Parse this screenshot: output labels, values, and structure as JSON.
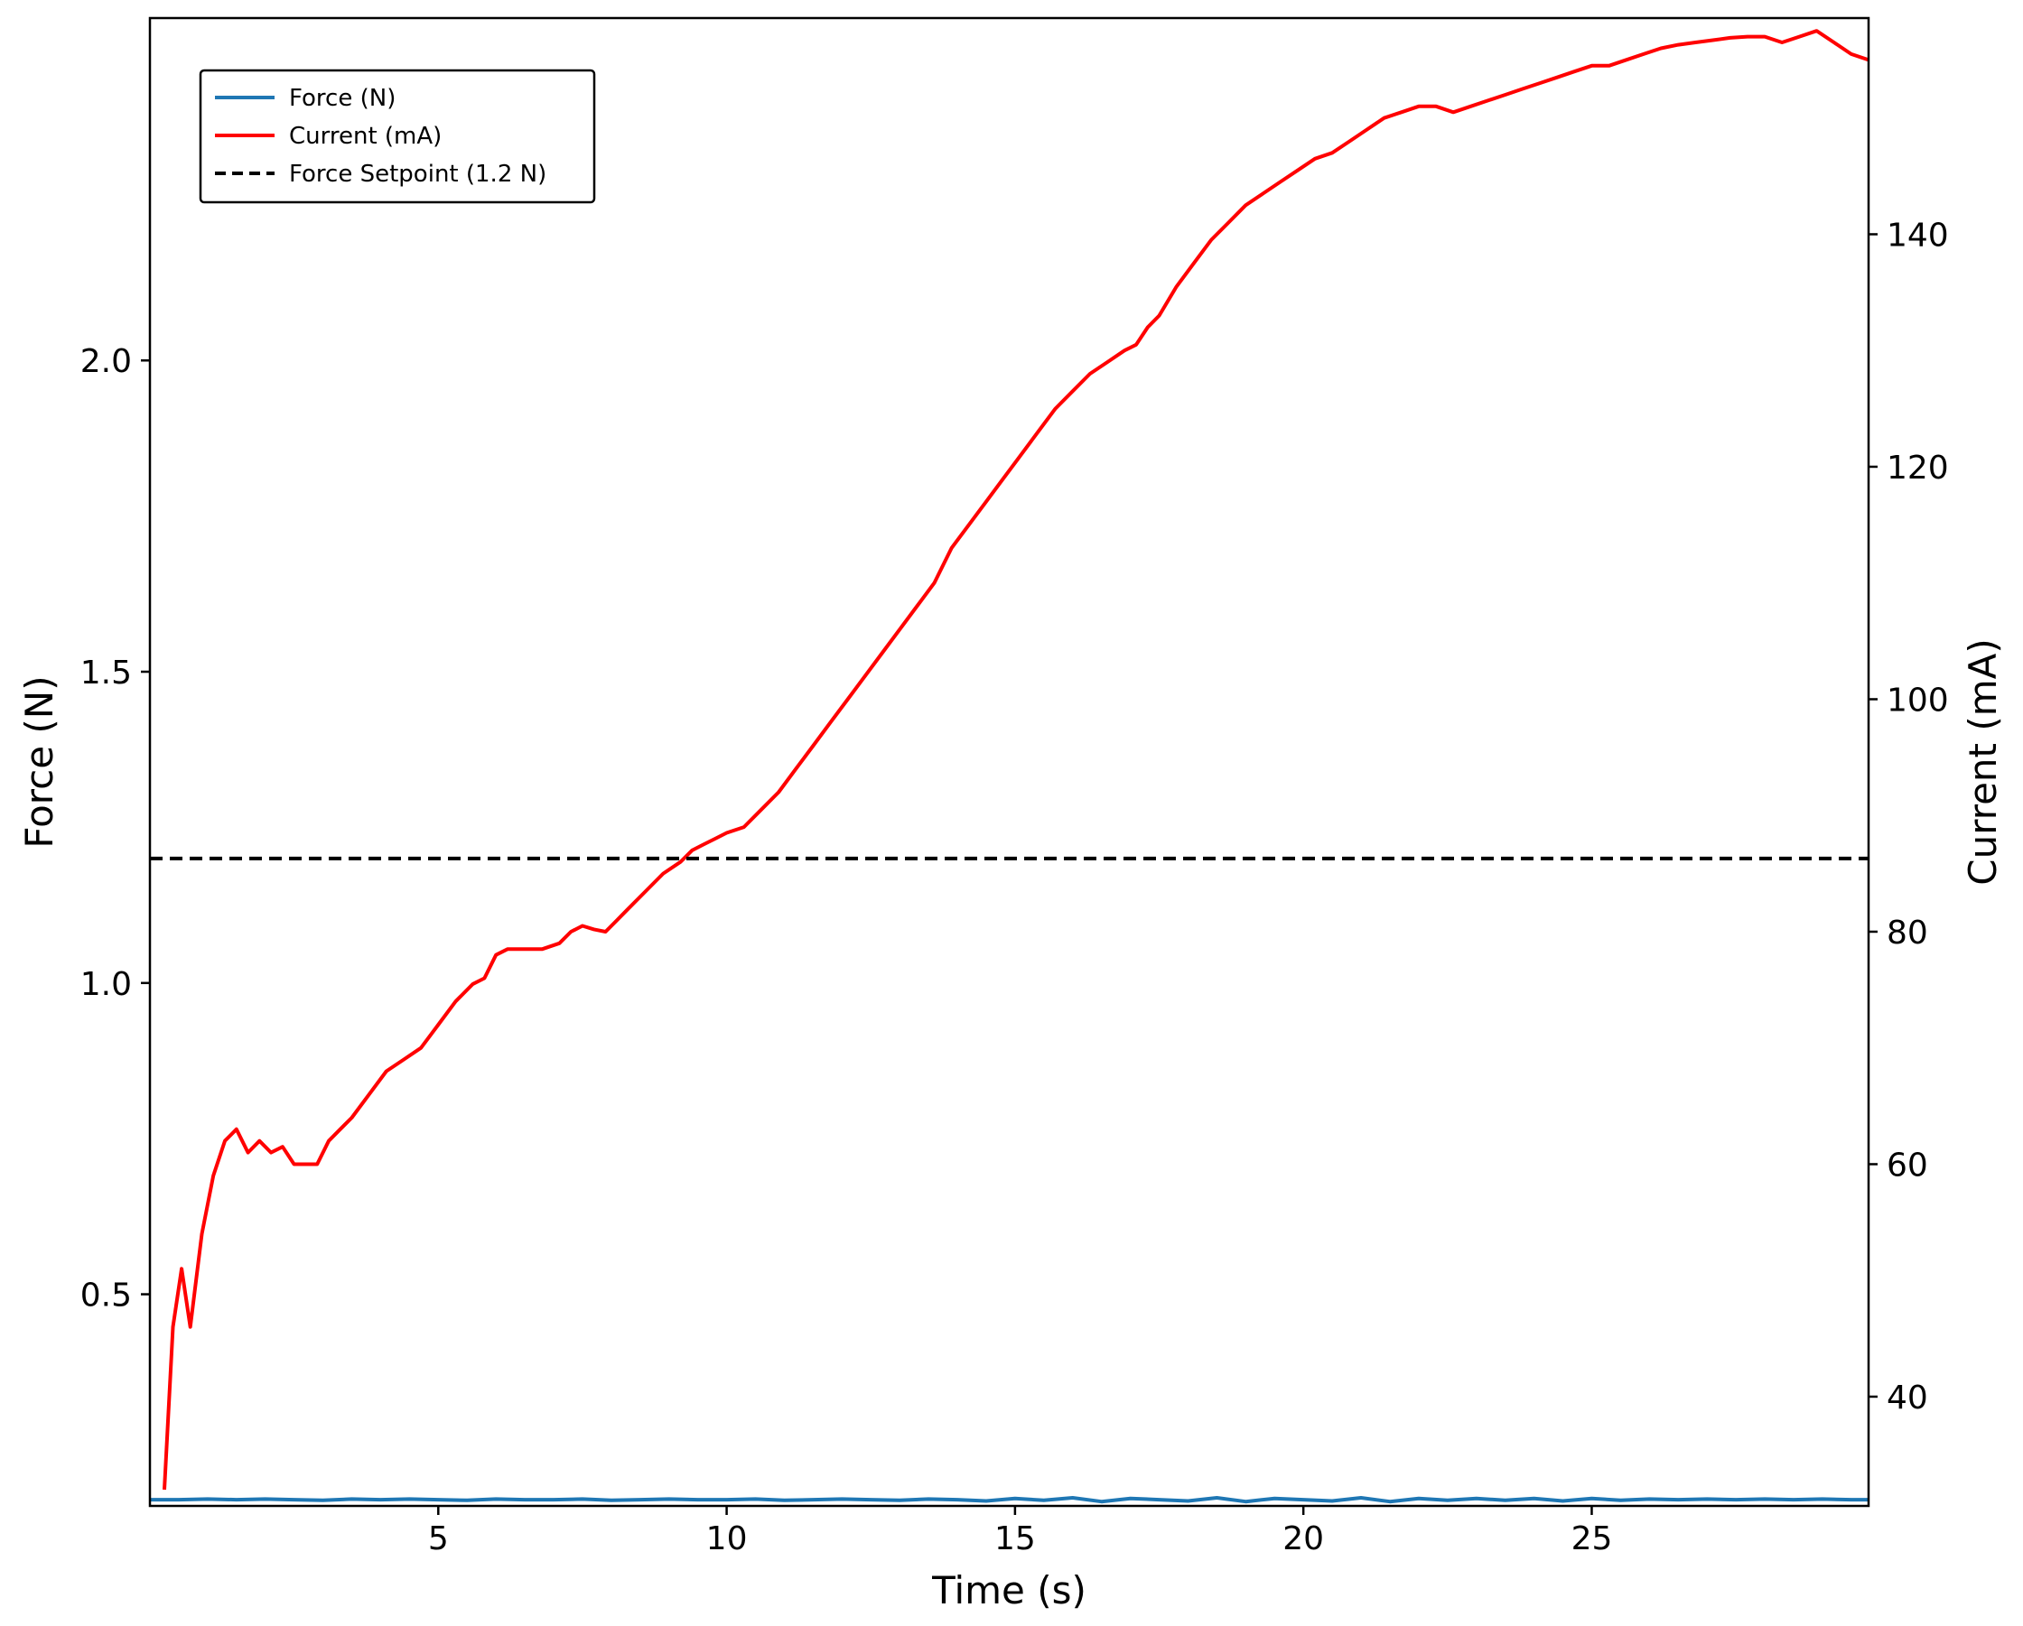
{
  "chart_data": {
    "type": "line",
    "xlabel": "Time (s)",
    "ylabel_left": "Force (N)",
    "ylabel_right": "Current (mA)",
    "xlim": [
      0,
      29.8
    ],
    "ylim_left": [
      0.16,
      2.55
    ],
    "ylim_right": [
      30.6,
      158.6
    ],
    "xticks": [
      5,
      10,
      15,
      20,
      25
    ],
    "yticks_left": [
      0.5,
      1.0,
      1.5,
      2.0
    ],
    "yticks_right": [
      40,
      60,
      80,
      100,
      120,
      140
    ],
    "xtick_labels": [
      "5",
      "10",
      "15",
      "20",
      "25"
    ],
    "ytick_left_labels": [
      "0.5",
      "1.0",
      "1.5",
      "2.0"
    ],
    "ytick_right_labels": [
      "40",
      "60",
      "80",
      "100",
      "120",
      "140"
    ],
    "grid": false,
    "legend": {
      "position": "top-left",
      "entries": [
        {
          "label": "Force (N)",
          "color": "#1f77b4",
          "style": "solid"
        },
        {
          "label": "Current (mA)",
          "color": "#ff0000",
          "style": "solid"
        },
        {
          "label": "Force Setpoint (1.2 N)",
          "color": "#000000",
          "style": "dashed"
        }
      ]
    },
    "series": [
      {
        "name": "Force (N)",
        "axis": "left",
        "color": "#1f77b4",
        "x": [
          0,
          0.5,
          1,
          1.5,
          2,
          2.5,
          3,
          3.5,
          4,
          4.5,
          5,
          5.5,
          6,
          6.5,
          7,
          7.5,
          8,
          8.5,
          9,
          9.5,
          10,
          10.5,
          11,
          11.5,
          12,
          12.5,
          13,
          13.5,
          14,
          14.5,
          15,
          15.5,
          16,
          16.5,
          17,
          17.5,
          18,
          18.5,
          19,
          19.5,
          20,
          20.5,
          21,
          21.5,
          22,
          22.5,
          23,
          23.5,
          24,
          24.5,
          25,
          25.5,
          26,
          26.5,
          27,
          27.5,
          28,
          28.5,
          29,
          29.5,
          29.8
        ],
        "values": [
          0.17,
          0.17,
          0.171,
          0.17,
          0.171,
          0.17,
          0.169,
          0.171,
          0.17,
          0.171,
          0.17,
          0.169,
          0.171,
          0.17,
          0.17,
          0.171,
          0.169,
          0.17,
          0.171,
          0.17,
          0.17,
          0.171,
          0.169,
          0.17,
          0.171,
          0.17,
          0.169,
          0.171,
          0.17,
          0.168,
          0.172,
          0.169,
          0.173,
          0.167,
          0.172,
          0.17,
          0.168,
          0.173,
          0.167,
          0.172,
          0.17,
          0.168,
          0.173,
          0.167,
          0.172,
          0.169,
          0.172,
          0.169,
          0.172,
          0.168,
          0.172,
          0.169,
          0.171,
          0.17,
          0.171,
          0.17,
          0.171,
          0.17,
          0.171,
          0.17,
          0.17
        ]
      },
      {
        "name": "Current (mA)",
        "axis": "right",
        "color": "#ff0000",
        "x": [
          0.25,
          0.4,
          0.55,
          0.7,
          0.9,
          1.1,
          1.3,
          1.5,
          1.7,
          1.9,
          2.1,
          2.3,
          2.5,
          2.7,
          2.9,
          3.1,
          3.3,
          3.5,
          3.8,
          4.1,
          4.4,
          4.7,
          5.0,
          5.3,
          5.6,
          5.8,
          6.0,
          6.2,
          6.5,
          6.8,
          7.1,
          7.3,
          7.5,
          7.7,
          7.9,
          8.1,
          8.3,
          8.6,
          8.9,
          9.2,
          9.4,
          9.6,
          9.8,
          10.0,
          10.3,
          10.6,
          10.9,
          11.2,
          11.5,
          11.8,
          12.1,
          12.4,
          12.7,
          13.0,
          13.3,
          13.6,
          13.9,
          14.2,
          14.5,
          14.8,
          15.1,
          15.4,
          15.7,
          16.0,
          16.3,
          16.6,
          16.9,
          17.1,
          17.3,
          17.5,
          17.8,
          18.1,
          18.4,
          18.7,
          19.0,
          19.3,
          19.6,
          19.9,
          20.2,
          20.5,
          20.8,
          21.1,
          21.4,
          21.7,
          22.0,
          22.3,
          22.6,
          22.9,
          23.2,
          23.5,
          23.8,
          24.1,
          24.4,
          24.7,
          25.0,
          25.3,
          25.6,
          25.9,
          26.2,
          26.5,
          26.8,
          27.1,
          27.4,
          27.7,
          28.0,
          28.3,
          28.6,
          28.9,
          29.2,
          29.5,
          29.8
        ],
        "values": [
          32,
          46,
          51,
          46,
          54,
          59,
          62,
          63,
          61,
          62,
          61,
          61.5,
          60,
          60,
          60,
          62,
          63,
          64,
          66,
          68,
          69,
          70,
          72,
          74,
          75.5,
          76,
          78,
          78.5,
          78.5,
          78.5,
          79,
          80,
          80.5,
          80.2,
          80,
          81,
          82,
          83.5,
          85,
          86,
          87,
          87.5,
          88,
          88.5,
          89,
          90.5,
          92,
          94,
          96,
          98,
          100,
          102,
          104,
          106,
          108,
          110,
          113,
          115,
          117,
          119,
          121,
          123,
          125,
          126.5,
          128,
          129,
          130,
          130.5,
          132,
          133,
          135.5,
          137.5,
          139.5,
          141,
          142.5,
          143.5,
          144.5,
          145.5,
          146.5,
          147,
          148,
          149,
          150,
          150.5,
          151,
          151,
          150.5,
          151,
          151.5,
          152,
          152.5,
          153,
          153.5,
          154,
          154.5,
          154.5,
          155,
          155.5,
          156,
          156.3,
          156.5,
          156.7,
          156.9,
          157,
          157,
          156.5,
          157,
          157.5,
          156.5,
          155.5,
          155
        ]
      },
      {
        "name": "Force Setpoint (1.2 N)",
        "axis": "left",
        "color": "#000000",
        "style": "dashed",
        "x": [
          0,
          29.8
        ],
        "values": [
          1.2,
          1.2
        ]
      }
    ]
  }
}
